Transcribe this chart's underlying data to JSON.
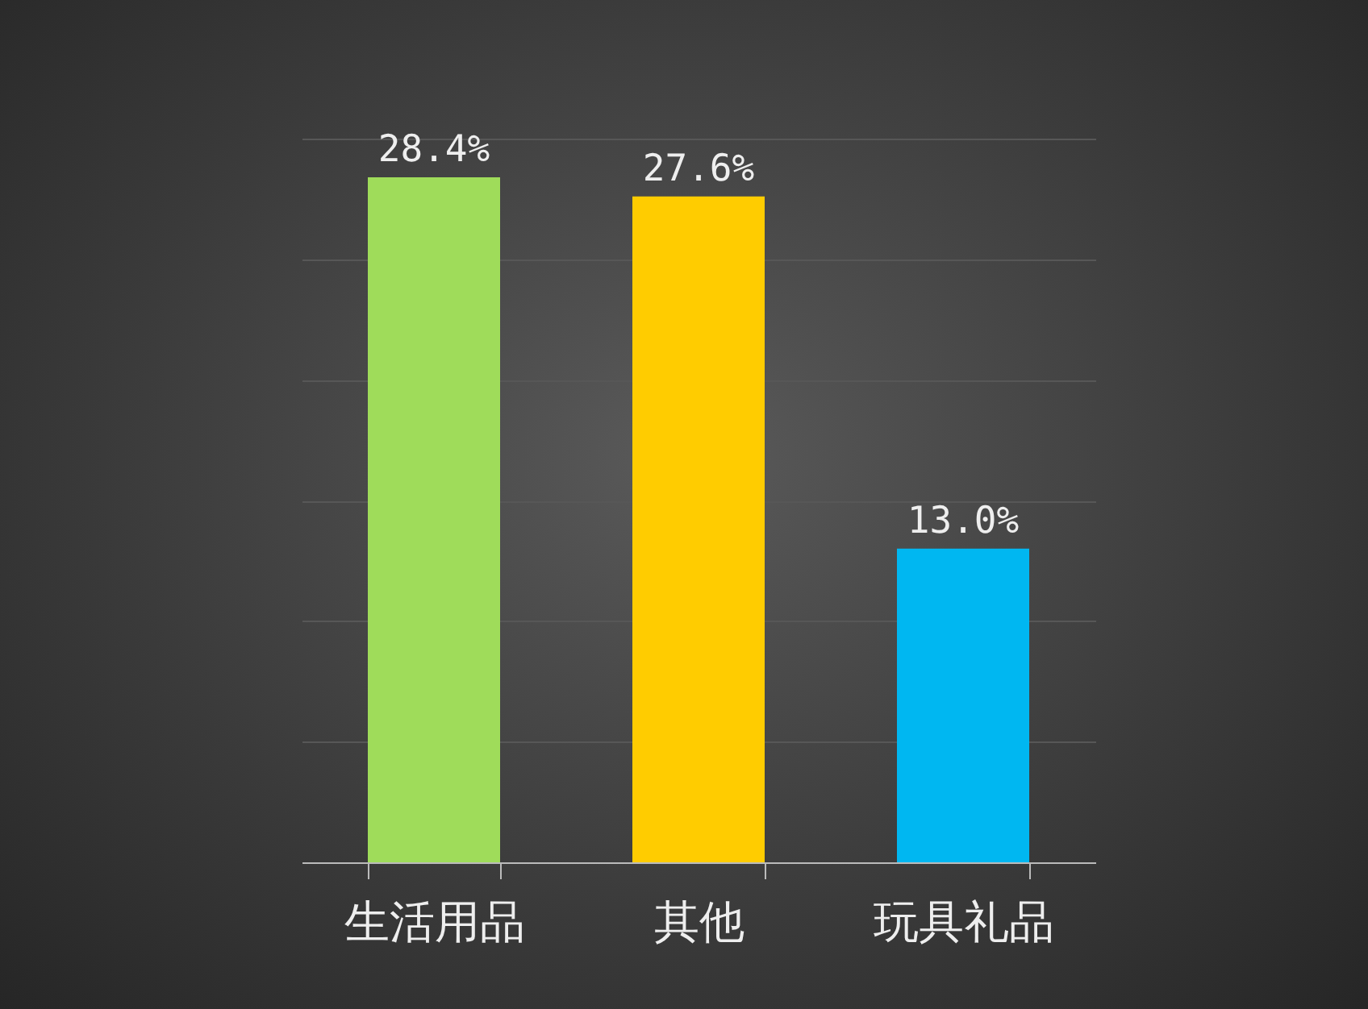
{
  "chart_data": {
    "type": "bar",
    "categories": [
      "生活用品",
      "其他",
      "玩具礼品"
    ],
    "values": [
      28.4,
      27.6,
      13.0
    ],
    "colors": [
      "#9fdc5a",
      "#ffcc00",
      "#00b7f1"
    ],
    "value_labels": [
      "28.4%",
      "27.6%",
      "13.0%"
    ],
    "ylim": [
      0,
      30
    ],
    "yticks": [
      0,
      5,
      10,
      15,
      20,
      25,
      30
    ],
    "grid": "y",
    "tick_labels": "x"
  }
}
